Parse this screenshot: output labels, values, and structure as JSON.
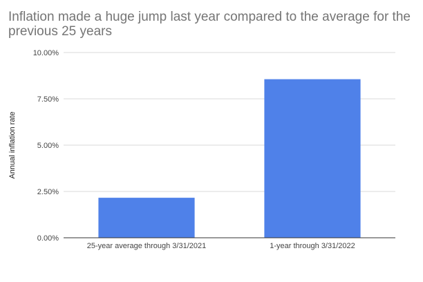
{
  "chart_data": {
    "type": "bar",
    "title": "Inflation made a huge jump last year compared to the average for the previous 25 years",
    "xlabel": "",
    "ylabel": "Annual inflation rate",
    "categories": [
      "25-year average through 3/31/2021",
      "1-year through 3/31/2022"
    ],
    "values": [
      2.16,
      8.56
    ],
    "ylim": [
      0,
      10
    ],
    "yticks": [
      0,
      2.5,
      5,
      7.5,
      10
    ],
    "ytick_labels": [
      "0.00%",
      "2.50%",
      "5.00%",
      "7.50%",
      "10.00%"
    ],
    "grid": true,
    "legend": "none",
    "colors": {
      "bar": "#4f81e9",
      "grid": "#d9d9d9",
      "axis": "#333333"
    }
  }
}
